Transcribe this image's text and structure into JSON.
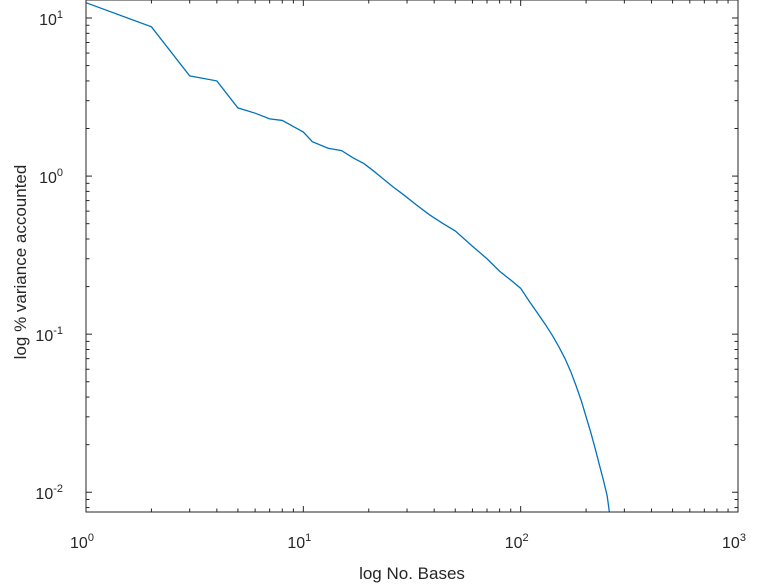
{
  "chart_data": {
    "type": "line",
    "title": "",
    "xlabel": "log No. Bases",
    "ylabel": "log % variance accounted",
    "xscale": "log",
    "yscale": "log",
    "xlim": [
      1,
      1000
    ],
    "ylim": [
      0.0075,
      13
    ],
    "grid": false,
    "legend": "none",
    "x_ticks": [
      {
        "base": "10",
        "exp": "0"
      },
      {
        "base": "10",
        "exp": "1"
      },
      {
        "base": "10",
        "exp": "2"
      },
      {
        "base": "10",
        "exp": "3"
      }
    ],
    "y_ticks": [
      {
        "base": "10",
        "exp": "-2"
      },
      {
        "base": "10",
        "exp": "-1"
      },
      {
        "base": "10",
        "exp": "0"
      },
      {
        "base": "10",
        "exp": "1"
      }
    ],
    "series": [
      {
        "color": "#0072bd",
        "x": [
          1,
          2,
          3,
          4,
          5,
          6,
          7,
          8,
          10,
          11,
          13,
          15,
          17,
          19,
          21,
          24,
          26,
          29,
          33,
          38,
          44,
          50,
          60,
          70,
          80,
          90,
          100,
          110,
          120,
          130,
          140,
          150,
          160,
          170,
          180,
          190,
          200,
          210,
          220,
          230,
          240,
          250,
          256
        ],
        "y": [
          12.5,
          8.8,
          4.3,
          4.0,
          2.7,
          2.5,
          2.3,
          2.25,
          1.9,
          1.65,
          1.5,
          1.45,
          1.3,
          1.2,
          1.08,
          0.93,
          0.85,
          0.76,
          0.66,
          0.57,
          0.5,
          0.45,
          0.36,
          0.3,
          0.25,
          0.22,
          0.195,
          0.16,
          0.135,
          0.115,
          0.098,
          0.083,
          0.07,
          0.058,
          0.047,
          0.038,
          0.03,
          0.024,
          0.019,
          0.015,
          0.012,
          0.0095,
          0.0075
        ]
      }
    ]
  }
}
